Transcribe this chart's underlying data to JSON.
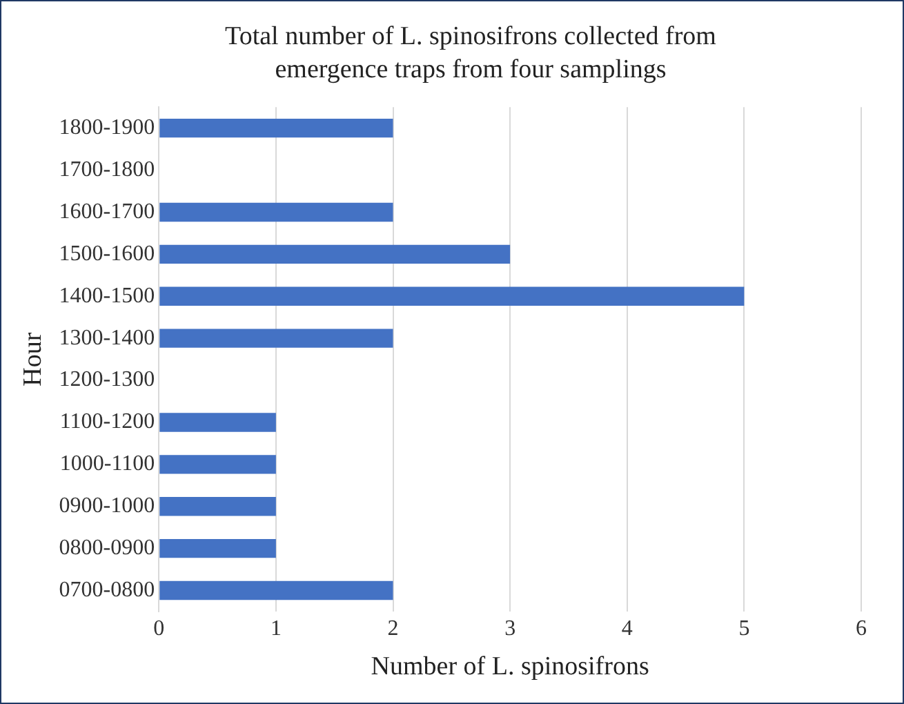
{
  "chart_data": {
    "type": "bar",
    "orientation": "horizontal",
    "title": "Total number of L. spinosifrons collected from emergence traps from four samplings",
    "xlabel": "Number of L. spinosifrons",
    "ylabel": "Hour",
    "categories": [
      "1800-1900",
      "1700-1800",
      "1600-1700",
      "1500-1600",
      "1400-1500",
      "1300-1400",
      "1200-1300",
      "1100-1200",
      "1000-1100",
      "0900-1000",
      "0800-0900",
      "0700-0800"
    ],
    "values": [
      2,
      0,
      2,
      3,
      5,
      2,
      0,
      1,
      1,
      1,
      1,
      2
    ],
    "color": "#4472c4",
    "xlim": [
      0,
      6
    ],
    "xticks": [
      0,
      1,
      2,
      3,
      4,
      5,
      6
    ],
    "grid": "x",
    "legend": false
  }
}
